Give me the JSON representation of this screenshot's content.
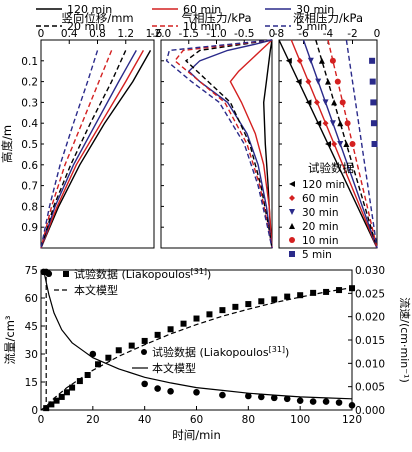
{
  "chart_data": [
    {
      "type": "line",
      "panel": "top-left",
      "title": "竖向位移/mm",
      "ylabel": "高度/m",
      "xlim": [
        0,
        1.6
      ],
      "ylim": [
        0,
        1.0
      ],
      "x_axis_position": "top",
      "y_inverted": true,
      "x_ticks": [
        "0",
        "0.4",
        "0.8",
        "1.2",
        "1.6"
      ],
      "y_ticks": [
        "0.1",
        "0.2",
        "0.3",
        "0.4",
        "0.5",
        "0.6",
        "0.7",
        "0.8",
        "0.9"
      ],
      "series": [
        {
          "name": "120 min",
          "color": "#000000",
          "dash": "solid",
          "y": [
            0.05,
            0.2,
            0.4,
            0.6,
            0.8,
            1.0
          ],
          "x": [
            1.55,
            1.3,
            0.9,
            0.55,
            0.25,
            0.0
          ]
        },
        {
          "name": "60 min",
          "color": "#d42020",
          "dash": "solid",
          "y": [
            0.05,
            0.2,
            0.4,
            0.6,
            0.8,
            1.0
          ],
          "x": [
            1.45,
            1.2,
            0.85,
            0.5,
            0.23,
            0.0
          ]
        },
        {
          "name": "30 min",
          "color": "#2a2a8a",
          "dash": "solid",
          "y": [
            0.05,
            0.2,
            0.4,
            0.6,
            0.8,
            1.0
          ],
          "x": [
            1.35,
            1.1,
            0.78,
            0.46,
            0.2,
            0.0
          ]
        },
        {
          "name": "20 min",
          "color": "#000000",
          "dash": "dash",
          "y": [
            0.05,
            0.2,
            0.4,
            0.6,
            0.8,
            1.0
          ],
          "x": [
            1.2,
            1.0,
            0.7,
            0.42,
            0.18,
            0.0
          ]
        },
        {
          "name": "10 min",
          "color": "#d42020",
          "dash": "dash",
          "y": [
            0.05,
            0.2,
            0.4,
            0.6,
            0.8,
            1.0
          ],
          "x": [
            1.0,
            0.82,
            0.58,
            0.34,
            0.15,
            0.0
          ]
        },
        {
          "name": "5 min",
          "color": "#2a2a8a",
          "dash": "dash",
          "y": [
            0.05,
            0.2,
            0.4,
            0.6,
            0.8,
            1.0
          ],
          "x": [
            0.8,
            0.66,
            0.46,
            0.27,
            0.12,
            0.0
          ]
        }
      ]
    },
    {
      "type": "line",
      "panel": "top-middle",
      "title": "气相压力/kPa",
      "xlim": [
        -2.0,
        0
      ],
      "ylim": [
        0,
        1.0
      ],
      "x_axis_position": "top",
      "y_inverted": true,
      "x_ticks": [
        "-2.0",
        "-1.5",
        "-1.0",
        "-0.5",
        "0"
      ],
      "series": [
        {
          "name": "120 min",
          "color": "#000000",
          "dash": "solid",
          "y": [
            0.0,
            0.05,
            0.2,
            0.3,
            0.5,
            0.7,
            0.9,
            1.0
          ],
          "x": [
            0.0,
            -0.03,
            -0.1,
            -0.15,
            -0.12,
            -0.07,
            -0.03,
            0.0
          ]
        },
        {
          "name": "60 min",
          "color": "#d42020",
          "dash": "solid",
          "y": [
            0.0,
            0.05,
            0.15,
            0.2,
            0.3,
            0.45,
            0.6,
            0.8,
            1.0
          ],
          "x": [
            0.0,
            -0.2,
            -0.6,
            -0.75,
            -0.55,
            -0.3,
            -0.15,
            -0.05,
            0.0
          ]
        },
        {
          "name": "30 min",
          "color": "#2a2a8a",
          "dash": "solid",
          "y": [
            0.0,
            0.02,
            0.05,
            0.1,
            0.15,
            0.2,
            0.3,
            0.45,
            0.6,
            0.8,
            1.0
          ],
          "x": [
            0.0,
            -0.3,
            -0.8,
            -1.3,
            -1.5,
            -1.3,
            -0.8,
            -0.45,
            -0.25,
            -0.1,
            0.0
          ]
        },
        {
          "name": "20 min",
          "color": "#000000",
          "dash": "dash",
          "y": [
            0.0,
            0.05,
            0.1,
            0.2,
            0.3,
            0.5,
            0.7,
            0.9,
            1.0
          ],
          "x": [
            0.0,
            -1.3,
            -1.55,
            -1.15,
            -0.75,
            -0.4,
            -0.2,
            -0.06,
            0.0
          ]
        },
        {
          "name": "10 min",
          "color": "#d42020",
          "dash": "dash",
          "y": [
            0.0,
            0.05,
            0.1,
            0.2,
            0.3,
            0.5,
            0.7,
            0.9,
            1.0
          ],
          "x": [
            0.0,
            -1.6,
            -1.75,
            -1.3,
            -0.85,
            -0.45,
            -0.22,
            -0.07,
            0.0
          ]
        },
        {
          "name": "5 min",
          "color": "#2a2a8a",
          "dash": "dash",
          "y": [
            0.0,
            0.05,
            0.1,
            0.2,
            0.3,
            0.5,
            0.7,
            0.9,
            1.0
          ],
          "x": [
            0.0,
            -1.85,
            -1.9,
            -1.45,
            -0.95,
            -0.5,
            -0.25,
            -0.08,
            0.0
          ]
        }
      ]
    },
    {
      "type": "line",
      "panel": "top-right",
      "title": "液相压力/kPa",
      "xlim": [
        -8,
        0
      ],
      "ylim": [
        0,
        1.0
      ],
      "x_axis_position": "top",
      "y_inverted": true,
      "x_ticks": [
        "-8",
        "-6",
        "-4",
        "-2",
        "0"
      ],
      "legend_title": "试验数据",
      "legend_placement": "center-right",
      "series": [
        {
          "name": "120 min",
          "color": "#000000",
          "dash": "solid",
          "y": [
            0.0,
            1.0
          ],
          "x": [
            -8.0,
            0.0
          ]
        },
        {
          "name": "60 min",
          "color": "#d42020",
          "dash": "solid",
          "y": [
            0.0,
            1.0
          ],
          "x": [
            -7.0,
            0.0
          ]
        },
        {
          "name": "30 min",
          "color": "#2a2a8a",
          "dash": "solid",
          "y": [
            0.0,
            1.0
          ],
          "x": [
            -6.0,
            0.0
          ]
        },
        {
          "name": "20 min",
          "color": "#000000",
          "dash": "dash",
          "y": [
            0.0,
            1.0
          ],
          "x": [
            -5.0,
            0.0
          ]
        },
        {
          "name": "10 min",
          "color": "#d42020",
          "dash": "dash",
          "y": [
            0.0,
            1.0
          ],
          "x": [
            -4.0,
            0.0
          ]
        },
        {
          "name": "5 min",
          "color": "#2a2a8a",
          "dash": "dash",
          "y": [
            0.0,
            1.0
          ],
          "x": [
            -2.5,
            0.0
          ]
        }
      ],
      "scatter": [
        {
          "name": "120 min",
          "marker": "tri-left",
          "color": "#000000",
          "y": [
            0.1,
            0.2,
            0.3,
            0.4,
            0.5
          ],
          "x": [
            -7.2,
            -6.4,
            -5.6,
            -4.8,
            -4.0
          ]
        },
        {
          "name": "60 min",
          "marker": "diamond",
          "color": "#d42020",
          "y": [
            0.1,
            0.2,
            0.3,
            0.4,
            0.5
          ],
          "x": [
            -6.3,
            -5.6,
            -4.9,
            -4.2,
            -3.5
          ]
        },
        {
          "name": "30 min",
          "marker": "tri-down",
          "color": "#2a2a8a",
          "y": [
            0.1,
            0.2,
            0.3,
            0.4,
            0.5
          ],
          "x": [
            -5.4,
            -4.8,
            -4.2,
            -3.6,
            -3.0
          ]
        },
        {
          "name": "20 min",
          "marker": "tri-up",
          "color": "#000000",
          "y": [
            0.1,
            0.2,
            0.3,
            0.4,
            0.5
          ],
          "x": [
            -4.5,
            -4.0,
            -3.5,
            -3.0,
            -2.5
          ]
        },
        {
          "name": "10 min",
          "marker": "circle",
          "color": "#d42020",
          "y": [
            0.1,
            0.2,
            0.3,
            0.4,
            0.5
          ],
          "x": [
            -3.6,
            -3.2,
            -2.8,
            -2.4,
            -2.0
          ]
        },
        {
          "name": "5 min",
          "marker": "square",
          "color": "#2a2a8a",
          "y": [
            0.1,
            0.2,
            0.3,
            0.4,
            0.5
          ],
          "x": [
            -0.4,
            -0.35,
            -0.3,
            -0.25,
            -0.2
          ]
        }
      ],
      "legend_entries": [
        "120 min",
        "60 min",
        "30 min",
        "20 min",
        "10 min",
        "5 min"
      ]
    },
    {
      "type": "scatter",
      "panel": "bottom",
      "xlabel": "时间/min",
      "ylabel": "流量/cm³",
      "ylabel_right": "流速/(cm·min⁻¹)",
      "xlim": [
        0,
        120
      ],
      "ylim": [
        0,
        75
      ],
      "ylim_right": [
        0,
        0.03
      ],
      "x_ticks": [
        "0",
        "20",
        "40",
        "60",
        "80",
        "100",
        "120"
      ],
      "y_ticks": [
        "0",
        "15",
        "30",
        "45",
        "60",
        "75"
      ],
      "y_ticks_right": [
        "0.000",
        "0.005",
        "0.010",
        "0.015",
        "0.020",
        "0.025",
        "0.030"
      ],
      "annotations": [
        {
          "text": "试验数据 (Liakopoulos",
          "sup": "[31]",
          "closing": ")",
          "marker": "square"
        },
        {
          "text": "本文模型",
          "line": "dash"
        },
        {
          "text": "试验数据 (Liakopoulos",
          "sup": "[31]",
          "closing": ")",
          "marker": "circle"
        },
        {
          "text": "本文模型",
          "line": "solid"
        }
      ],
      "series": [
        {
          "name": "试验数据 (Liakopoulos[31]) 流量",
          "axis": "right",
          "marker": "square",
          "x": [
            2,
            4,
            6,
            8,
            10,
            12,
            15,
            18,
            22,
            26,
            30,
            35,
            40,
            45,
            50,
            55,
            60,
            65,
            70,
            75,
            80,
            85,
            90,
            95,
            100,
            105,
            110,
            115,
            120
          ],
          "y": [
            0.0004,
            0.0012,
            0.002,
            0.0028,
            0.0038,
            0.0048,
            0.0062,
            0.0075,
            0.0098,
            0.0112,
            0.0128,
            0.0138,
            0.0148,
            0.0161,
            0.0173,
            0.0185,
            0.0196,
            0.0205,
            0.0214,
            0.0221,
            0.0227,
            0.0233,
            0.0237,
            0.0243,
            0.0246,
            0.0251,
            0.0253,
            0.0257,
            0.0261
          ]
        },
        {
          "name": "本文模型 流量",
          "axis": "right",
          "line": "dash",
          "x": [
            0,
            2,
            5,
            10,
            20,
            30,
            40,
            50,
            60,
            70,
            80,
            90,
            100,
            110,
            120
          ],
          "y": [
            0.0,
            0.0008,
            0.0025,
            0.0048,
            0.0085,
            0.0115,
            0.014,
            0.0163,
            0.0183,
            0.0201,
            0.0216,
            0.023,
            0.0242,
            0.0253,
            0.0262
          ]
        },
        {
          "name": "试验数据 (Liakopoulos[31]) 流速",
          "axis": "left",
          "marker": "circle",
          "x": [
            1,
            2,
            3,
            20,
            40,
            45,
            50,
            60,
            70,
            80,
            85,
            90,
            95,
            100,
            105,
            110,
            115,
            120
          ],
          "y": [
            74,
            74,
            73,
            30,
            14,
            11.5,
            10,
            9.5,
            8,
            7.5,
            7,
            6.5,
            6,
            5,
            4.5,
            4.5,
            4,
            2.5
          ]
        },
        {
          "name": "本文模型 流速",
          "axis": "left",
          "line": "solid",
          "x": [
            1,
            3,
            5,
            8,
            12,
            16,
            20,
            25,
            30,
            40,
            50,
            60,
            70,
            80,
            90,
            100,
            110,
            120
          ],
          "y": [
            75,
            62,
            52,
            43,
            36,
            32,
            28,
            25,
            22,
            17.5,
            14.5,
            12,
            10.5,
            9,
            8,
            7,
            6.5,
            6
          ]
        },
        {
          "name": "初始 竖线",
          "axis": "left",
          "line": "dash",
          "x": [
            2,
            2
          ],
          "y": [
            0,
            75
          ]
        }
      ]
    }
  ],
  "legend_top": [
    {
      "label": "120 min",
      "color": "#000000",
      "dash": "solid"
    },
    {
      "label": "60 min",
      "color": "#d42020",
      "dash": "solid"
    },
    {
      "label": "30 min",
      "color": "#2a2a8a",
      "dash": "solid"
    },
    {
      "label": "20 min",
      "color": "#000000",
      "dash": "dash"
    },
    {
      "label": "10 min",
      "color": "#d42020",
      "dash": "dash"
    },
    {
      "label": "5 min",
      "color": "#2a2a8a",
      "dash": "dash"
    }
  ]
}
